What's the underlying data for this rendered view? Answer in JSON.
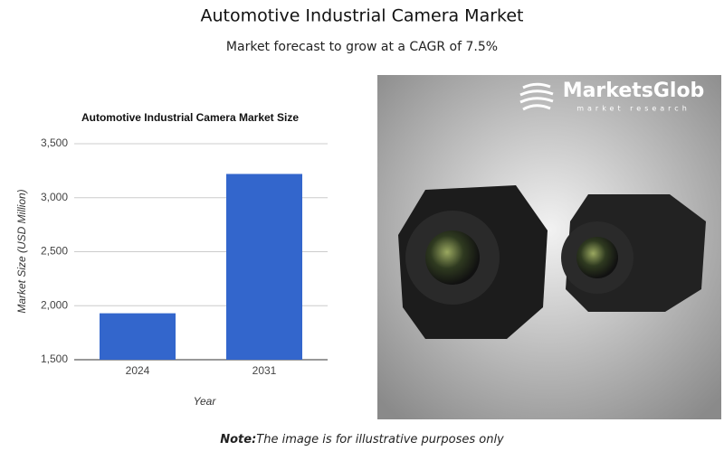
{
  "header": {
    "title": "Automotive Industrial Camera Market",
    "subtitle": "Market forecast to grow at a CAGR of 7.5%"
  },
  "chart_data": {
    "type": "bar",
    "title": "Automotive Industrial Camera Market Size",
    "categories": [
      "2024",
      "2031"
    ],
    "values": [
      1930,
      3220
    ],
    "color": "#3366cc",
    "xlabel": "Year",
    "ylabel": "Market Size (USD Million)",
    "ylim": [
      1500,
      3500
    ],
    "yticks": [
      {
        "value": 1500,
        "label": "1,500"
      },
      {
        "value": 2000,
        "label": "2,000"
      },
      {
        "value": 2500,
        "label": "2,500"
      },
      {
        "value": 3000,
        "label": "3,000"
      },
      {
        "value": 3500,
        "label": "3,500"
      }
    ],
    "grid": true
  },
  "image": {
    "logo": "MarketsGlob",
    "tagline": "market research"
  },
  "note": {
    "label": "Note:",
    "text": "The image is for illustrative purposes only"
  }
}
